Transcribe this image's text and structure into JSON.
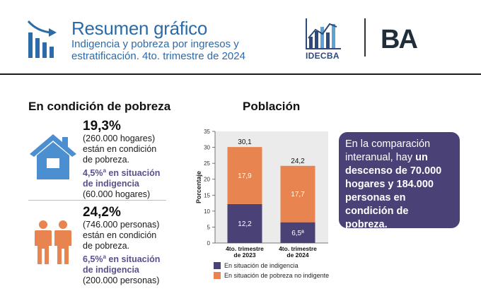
{
  "header": {
    "title": "Resumen gráfico",
    "subtitle": "Indigencia y pobreza por ingresos y estratificación. 4to. trimestre de 2024",
    "org_logo_text": "IDECBA",
    "city_logo_text": "BA"
  },
  "left": {
    "section_title": "En condición de pobreza",
    "households": {
      "big": "19,3%",
      "line1": "(260.000 hogares)",
      "line2": "están en condición",
      "line3": "de pobreza.",
      "ind_value": "4,5%",
      "ind_sup": "a",
      "ind_text": " en situación",
      "ind_line2": "de indigencia",
      "line_last": "(60.000 hogares)",
      "icon": "house-icon"
    },
    "persons": {
      "big": "24,2%",
      "line1": "(746.000 personas)",
      "line2": "están en condición",
      "line3": "de pobreza.",
      "ind_value": "6,5%",
      "ind_sup": "a",
      "ind_text": " en situación",
      "ind_line2": "de indigencia",
      "line_last": "(200.000 personas)",
      "icon": "people-icon"
    }
  },
  "right": {
    "section_title": "Población"
  },
  "chart_data": {
    "type": "bar",
    "stacked": true,
    "categories": [
      [
        "4to. trimestre",
        "de 2023"
      ],
      [
        "4to. trimestre",
        "de 2024"
      ]
    ],
    "series": [
      {
        "name": "En situación de indigencia",
        "values": [
          12.2,
          6.5
        ],
        "labels": [
          "12,2",
          "6,5ª"
        ],
        "color": "#4a4277"
      },
      {
        "name": "En situación de pobreza no indigente",
        "values": [
          17.9,
          17.7
        ],
        "labels": [
          "17,9",
          "17,7"
        ],
        "color": "#e8844f"
      }
    ],
    "totals": [
      30.1,
      24.2
    ],
    "total_labels": [
      "30,1",
      "24,2"
    ],
    "ylabel": "Porcentaje",
    "ylim": [
      0,
      35
    ],
    "yticks": [
      0,
      5,
      10,
      15,
      20,
      25,
      30,
      35
    ],
    "plot_background": "#ebebeb",
    "legend_position": "bottom"
  },
  "callout": {
    "text1": "En la comparación interanual, hay ",
    "text_bold": "un descenso de 70.000 hogares y 184.000 personas en condición de pobreza."
  },
  "colors": {
    "accent_blue": "#2d6aa8",
    "indigence_purple": "#4a4277",
    "poverty_orange": "#e8844f",
    "callout_bg": "#4a4277"
  }
}
